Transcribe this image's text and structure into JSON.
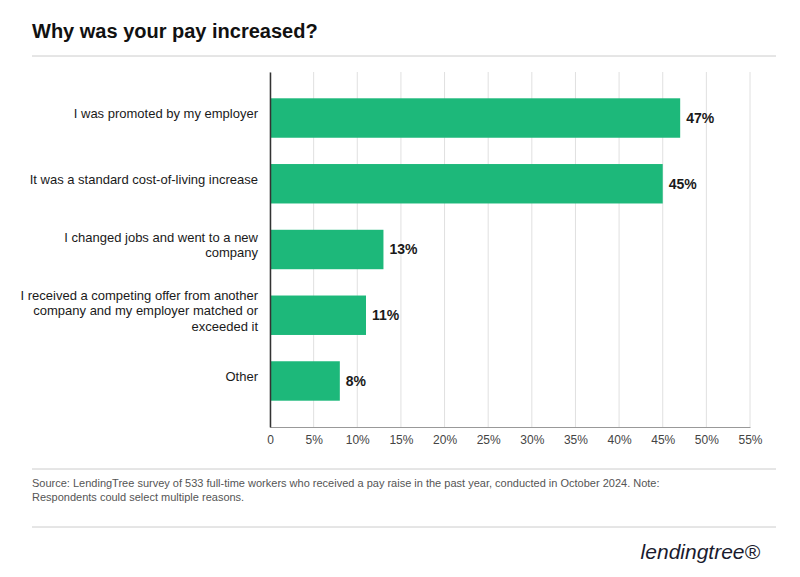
{
  "chart_data": {
    "type": "bar",
    "orientation": "horizontal",
    "title": "Why was your pay increased?",
    "categories": [
      "Other",
      "I received a competing offer from another\ncompany and my employer matched or\nexceeded it",
      "I changed jobs and went to a new\ncompany",
      "It was a standard cost-of-living increase",
      "I was promoted by my employer"
    ],
    "values": [
      8,
      11,
      13,
      45,
      47
    ],
    "value_labels": [
      "8%",
      "11%",
      "13%",
      "45%",
      "47%"
    ],
    "data_labels": true,
    "color": "#1db87a",
    "xlim": [
      0,
      55
    ],
    "xticks": [
      0,
      {
        "value": 5,
        "label": "5%"
      },
      {
        "value": 10,
        "label": "10%"
      },
      {
        "value": 15,
        "label": "15%"
      },
      {
        "value": 20,
        "label": "20%"
      },
      {
        "value": 25,
        "label": "25%"
      },
      {
        "value": 30,
        "label": "30%"
      },
      {
        "value": 35,
        "label": "35%"
      },
      {
        "value": 40,
        "label": "40%"
      },
      {
        "value": 45,
        "label": "45%"
      },
      {
        "value": 50,
        "label": "50%"
      },
      {
        "value": 55,
        "label": "55%"
      }
    ],
    "grid": true,
    "source": "Source: LendingTree survey of 533 full-time workers who received a pay raise in the past year, conducted in October 2024. Note:\nRespondents could select multiple reasons.",
    "annotations": [
      "lendingtree®"
    ]
  }
}
